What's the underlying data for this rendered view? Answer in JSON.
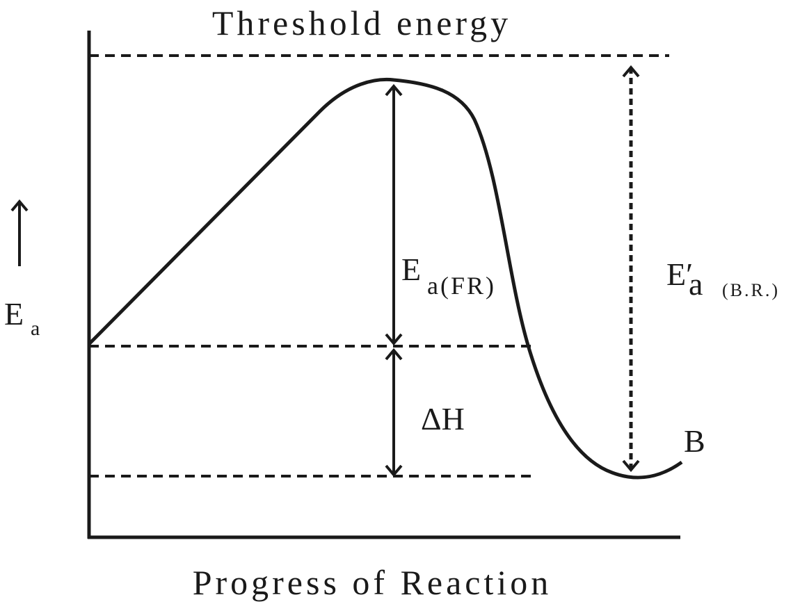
{
  "title": "Threshold energy",
  "x_axis_label": "Progress of Reaction",
  "y_axis_label": {
    "main": "E",
    "sub": "a"
  },
  "labels": {
    "forward": {
      "main": "E",
      "sub": "a(FR)"
    },
    "enthalpy": "ΔH",
    "backward": {
      "main": "E′",
      "sub": "a",
      "qualifier": "(B.R.)"
    },
    "product": "B"
  }
}
